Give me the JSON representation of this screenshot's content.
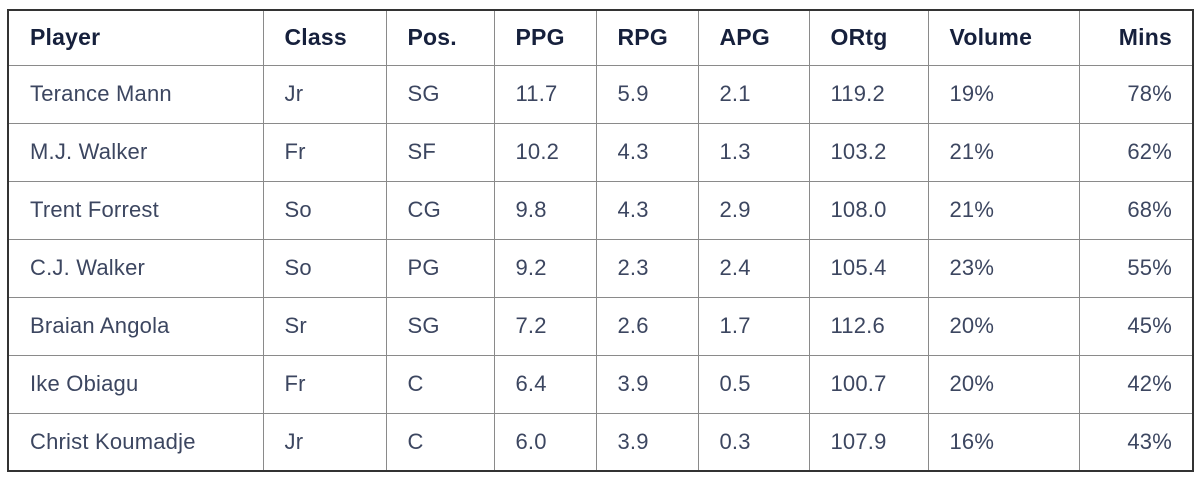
{
  "colors": {
    "header_text": "#16203c",
    "body_text": "#3c4660",
    "grid_line": "#8a8a8a",
    "outer_border": "#333333",
    "background": "#ffffff"
  },
  "chart_data": {
    "type": "table",
    "columns": [
      "Player",
      "Class",
      "Pos.",
      "PPG",
      "RPG",
      "APG",
      "ORtg",
      "Volume",
      "Mins"
    ],
    "rows": [
      [
        "Terance Mann",
        "Jr",
        "SG",
        "11.7",
        "5.9",
        "2.1",
        "119.2",
        "19%",
        "78%"
      ],
      [
        "M.J. Walker",
        "Fr",
        "SF",
        "10.2",
        "4.3",
        "1.3",
        "103.2",
        "21%",
        "62%"
      ],
      [
        "Trent Forrest",
        "So",
        "CG",
        "9.8",
        "4.3",
        "2.9",
        "108.0",
        "21%",
        "68%"
      ],
      [
        "C.J. Walker",
        "So",
        "PG",
        "9.2",
        "2.3",
        "2.4",
        "105.4",
        "23%",
        "55%"
      ],
      [
        "Braian Angola",
        "Sr",
        "SG",
        "7.2",
        "2.6",
        "1.7",
        "112.6",
        "20%",
        "45%"
      ],
      [
        "Ike Obiagu",
        "Fr",
        "C",
        "6.4",
        "3.9",
        "0.5",
        "100.7",
        "20%",
        "42%"
      ],
      [
        "Christ Koumadje",
        "Jr",
        "C",
        "6.0",
        "3.9",
        "0.3",
        "107.9",
        "16%",
        "43%"
      ]
    ]
  }
}
